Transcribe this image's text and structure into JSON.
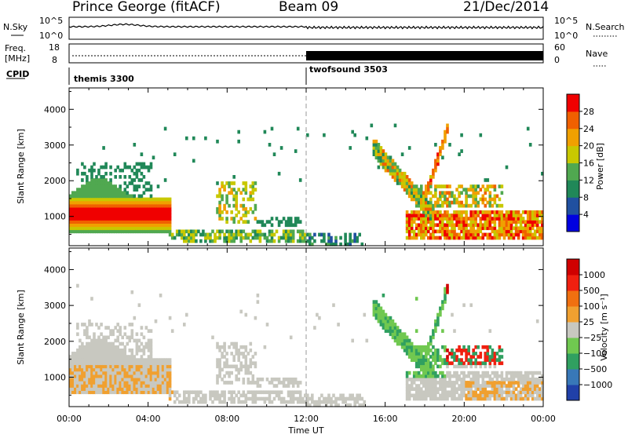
{
  "header": {
    "station": "Prince George (fitACF)",
    "beam": "Beam 09",
    "date": "21/Dec/2014"
  },
  "strips": {
    "nsky_label": "N.Sky",
    "nsky_ticks": [
      "10^5",
      "10^0"
    ],
    "nsearch_label": "N.Search",
    "nsearch_ticks": [
      "10^5",
      "10^0"
    ],
    "freq_label": "Freq.",
    "freq_unit": "[MHz]",
    "freq_ticks": [
      "18",
      "8"
    ],
    "nave_label": "Nave",
    "nave_ticks": [
      "60",
      "0"
    ],
    "cpid_label": "CPID",
    "cpid_modes": [
      {
        "name": "themis 3300",
        "start_hour": 0
      },
      {
        "name": "twofsound 3503",
        "start_hour": 12
      }
    ]
  },
  "chart_data": [
    {
      "type": "heatmap",
      "name": "power",
      "ylabel": "Slant Range [km]",
      "xlabel": "Time UT",
      "ylim": [
        180,
        4600
      ],
      "xlim": [
        0,
        24
      ],
      "yticks": [
        1000,
        2000,
        3000,
        4000
      ],
      "xtick_labels": [
        "00:00",
        "04:00",
        "08:00",
        "12:00",
        "16:00",
        "20:00",
        "00:00"
      ],
      "colorbar_label": "Power [dB]",
      "colorbar_ticks": [
        "28",
        "24",
        "20",
        "16",
        "12",
        "8",
        "4"
      ],
      "colors": [
        "#0000e0",
        "#2050a0",
        "#208858",
        "#50a850",
        "#c8c800",
        "#f0a000",
        "#f06000",
        "#f00000"
      ]
    },
    {
      "type": "heatmap",
      "name": "velocity",
      "ylabel": "Slant Range [km]",
      "xlabel": "Time UT",
      "ylim": [
        180,
        4600
      ],
      "xlim": [
        0,
        24
      ],
      "yticks": [
        1000,
        2000,
        3000,
        4000
      ],
      "xtick_labels": [
        "00:00",
        "04:00",
        "08:00",
        "12:00",
        "16:00",
        "20:00",
        "00:00"
      ],
      "colorbar_label": "Velocity [m s⁻¹]",
      "colorbar_ticks": [
        "1000",
        "500",
        "100",
        "25",
        "−25",
        "−100",
        "−500",
        "−1000"
      ],
      "colors": [
        "#2040a8",
        "#3878b8",
        "#30a060",
        "#70c850",
        "#c8c8c0",
        "#f0a030",
        "#f07010",
        "#f02010",
        "#d00000"
      ]
    }
  ],
  "footer": {
    "time_label": "Time UT"
  }
}
